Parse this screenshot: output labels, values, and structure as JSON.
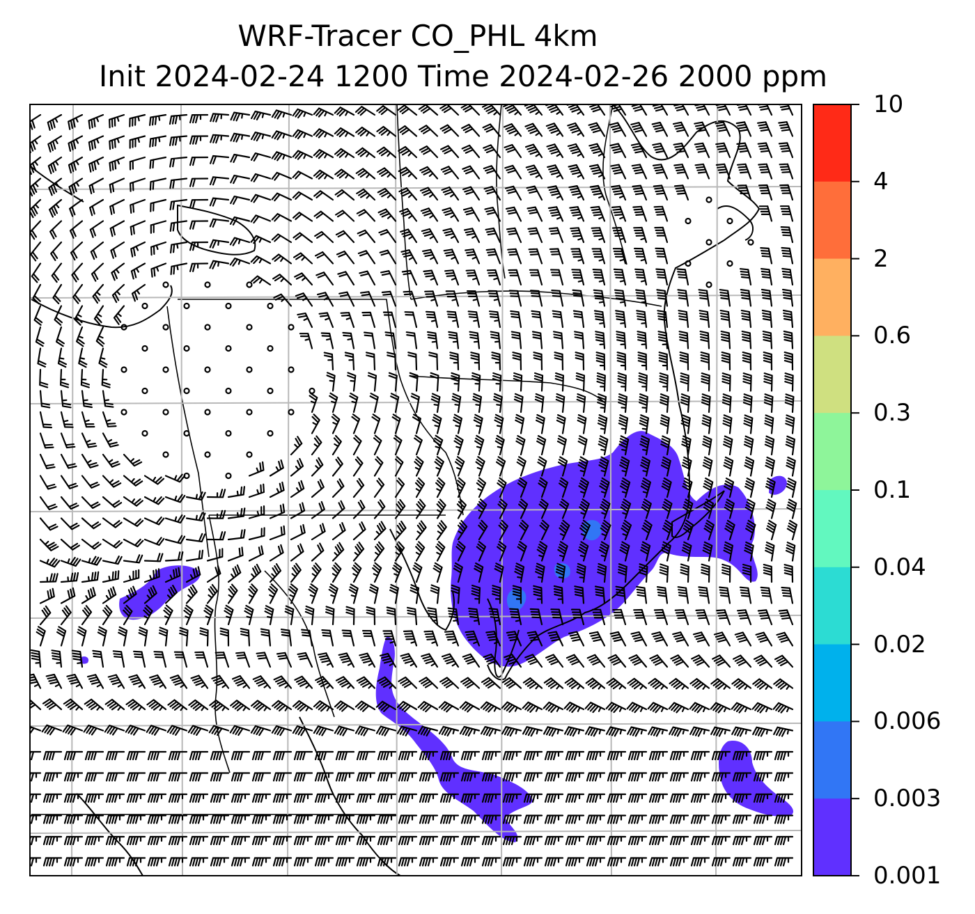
{
  "title": {
    "line1": "WRF-Tracer CO_PHL 4km",
    "line2": "Init 2024-02-24 1200 Time 2024-02-26 2000 ppm"
  },
  "colorbar": {
    "ticks": [
      "10",
      "4",
      "2",
      "0.6",
      "0.3",
      "0.1",
      "0.04",
      "0.02",
      "0.006",
      "0.003",
      "0.001"
    ],
    "colors": [
      "#ff2a17",
      "#ff6e3a",
      "#ffb060",
      "#cfe080",
      "#8ef59a",
      "#62f8bf",
      "#2cdcd3",
      "#00b1ec",
      "#3176f5",
      "#6030ff"
    ]
  },
  "map": {
    "features": [
      "coastlines",
      "state-borders",
      "gridlines",
      "wind-barbs",
      "tracer-plume"
    ]
  },
  "colors": {
    "plume": "#6030ff",
    "plume_core": "#3176f5",
    "gridline": "#b8b8b8",
    "barb": "#000000"
  }
}
